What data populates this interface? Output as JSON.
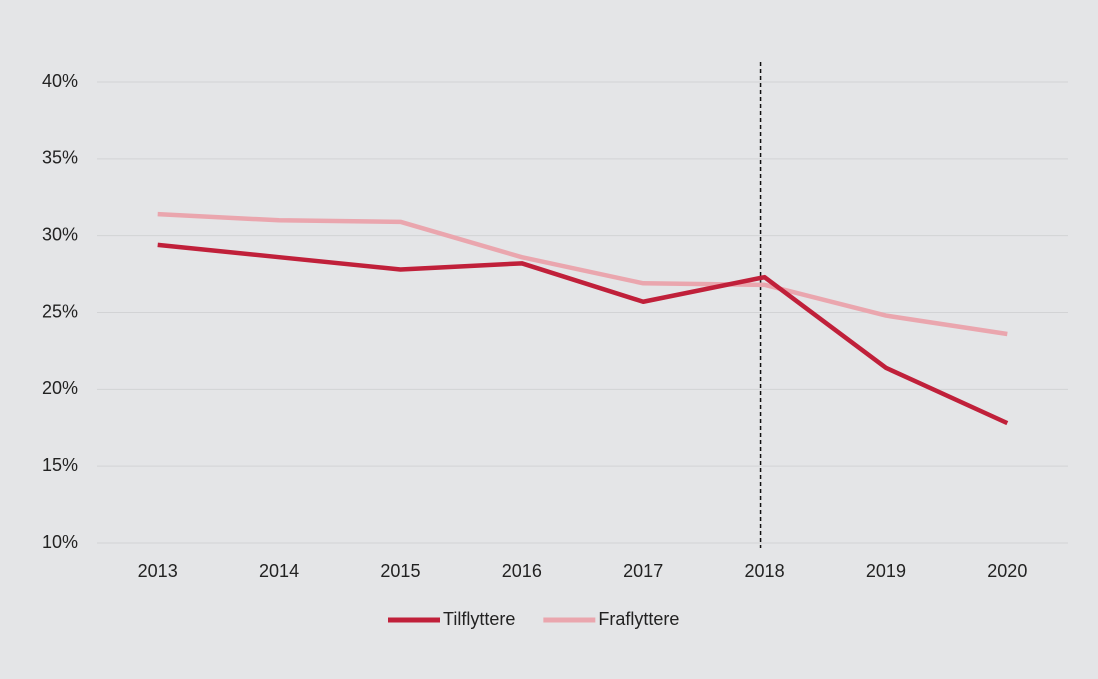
{
  "chart_data": {
    "type": "line",
    "categories": [
      "2013",
      "2014",
      "2015",
      "2016",
      "2017",
      "2018",
      "2019",
      "2020"
    ],
    "series": [
      {
        "name": "Tilflyttere",
        "color": "#c0203a",
        "values": [
          29.4,
          28.6,
          27.8,
          28.2,
          25.7,
          27.3,
          21.4,
          17.8
        ]
      },
      {
        "name": "Fraflyttere",
        "color": "#eaa6ae",
        "values": [
          31.4,
          31.0,
          30.9,
          28.6,
          26.9,
          26.8,
          24.8,
          23.6
        ]
      }
    ],
    "ylim": [
      10,
      40
    ],
    "yticks": [
      {
        "value": 10,
        "label": "10%"
      },
      {
        "value": 15,
        "label": "15%"
      },
      {
        "value": 20,
        "label": "20%"
      },
      {
        "value": 25,
        "label": "25%"
      },
      {
        "value": 30,
        "label": "30%"
      },
      {
        "value": 35,
        "label": "35%"
      },
      {
        "value": 40,
        "label": "40%"
      }
    ],
    "grid": true,
    "reference_line": {
      "x": "2018",
      "style": "dashed"
    },
    "legend": "bottom"
  }
}
